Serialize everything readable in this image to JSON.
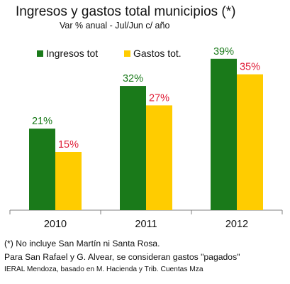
{
  "chart_data": {
    "type": "bar",
    "title": "Ingresos y gastos total municipios (*)",
    "subtitle": "Var % anual - Jul/Jun c/ año",
    "categories": [
      "2010",
      "2011",
      "2012"
    ],
    "series": [
      {
        "name": "Ingresos tot",
        "values": [
          21,
          32,
          39
        ],
        "labels": [
          "21%",
          "32%",
          "39%"
        ],
        "color": "#1a7a1a",
        "label_color": "#1a7a1a"
      },
      {
        "name": "Gastos tot.",
        "values": [
          15,
          27,
          35
        ],
        "labels": [
          "15%",
          "27%",
          "35%"
        ],
        "color": "#ffcc00",
        "label_color": "#e0203a"
      }
    ],
    "ylim": [
      0,
      45
    ],
    "xlabel": "",
    "ylabel": "",
    "grid": false,
    "legend_position": "top"
  },
  "notes": {
    "line1": "(*) No incluye San Martín ni Santa Rosa.",
    "line2": "Para San Rafael y G. Alvear, se consideran gastos \"pagados\""
  },
  "source": "IERAL Mendoza, basado en M. Hacienda y Trib. Cuentas Mza"
}
